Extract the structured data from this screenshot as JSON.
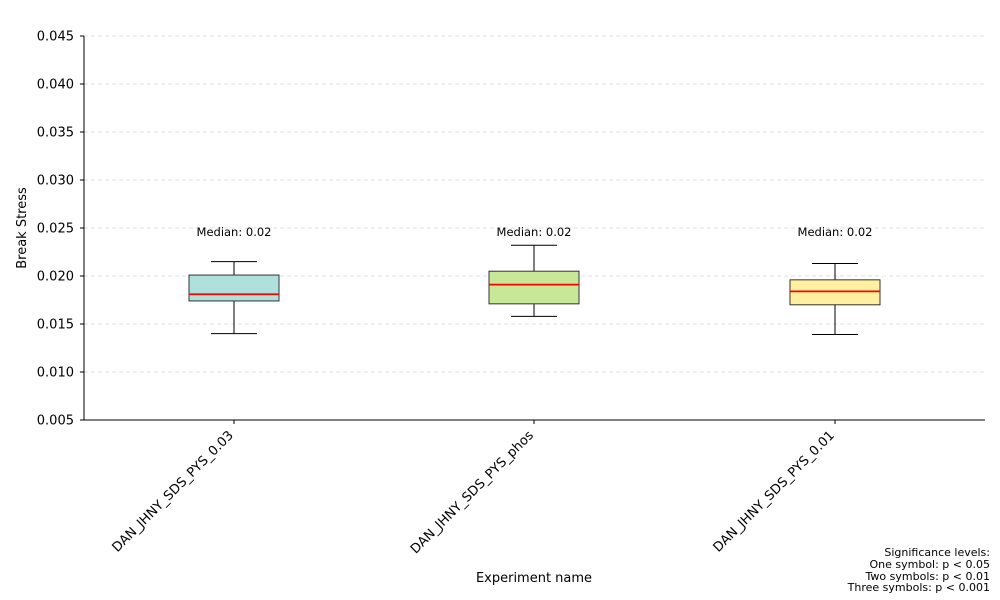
{
  "chart_data": {
    "type": "box",
    "xlabel": "Experiment name",
    "ylabel": "Break Stress",
    "ylim": [
      0.005,
      0.045
    ],
    "yticks": [
      0.005,
      0.01,
      0.015,
      0.02,
      0.025,
      0.03,
      0.035,
      0.04,
      0.045
    ],
    "ytick_labels": [
      "0.005",
      "0.010",
      "0.015",
      "0.020",
      "0.025",
      "0.030",
      "0.035",
      "0.040",
      "0.045"
    ],
    "grid": "horizontal dashed",
    "median_color": "#ff0000",
    "categories": [
      "DAN_JHNY_SDS_PYS_0.03",
      "DAN_JHNY_SDS_PYS_phos",
      "DAN_JHNY_SDS_PYS_0.01"
    ],
    "boxes": [
      {
        "whisker_low": 0.014,
        "q1": 0.0174,
        "median": 0.0181,
        "q3": 0.0201,
        "whisker_high": 0.0215,
        "color": "#b0e0dc",
        "annotation": "Median: 0.02"
      },
      {
        "whisker_low": 0.0158,
        "q1": 0.0171,
        "median": 0.0191,
        "q3": 0.0205,
        "whisker_high": 0.0232,
        "color": "#c8e898",
        "annotation": "Median: 0.02"
      },
      {
        "whisker_low": 0.0139,
        "q1": 0.017,
        "median": 0.0184,
        "q3": 0.0196,
        "whisker_high": 0.0213,
        "color": "#fff0a0",
        "annotation": "Median: 0.02"
      }
    ]
  },
  "significance_note": [
    "Significance levels:",
    "One symbol: p < 0.05",
    "Two symbols: p < 0.01",
    "Three symbols: p < 0.001"
  ]
}
